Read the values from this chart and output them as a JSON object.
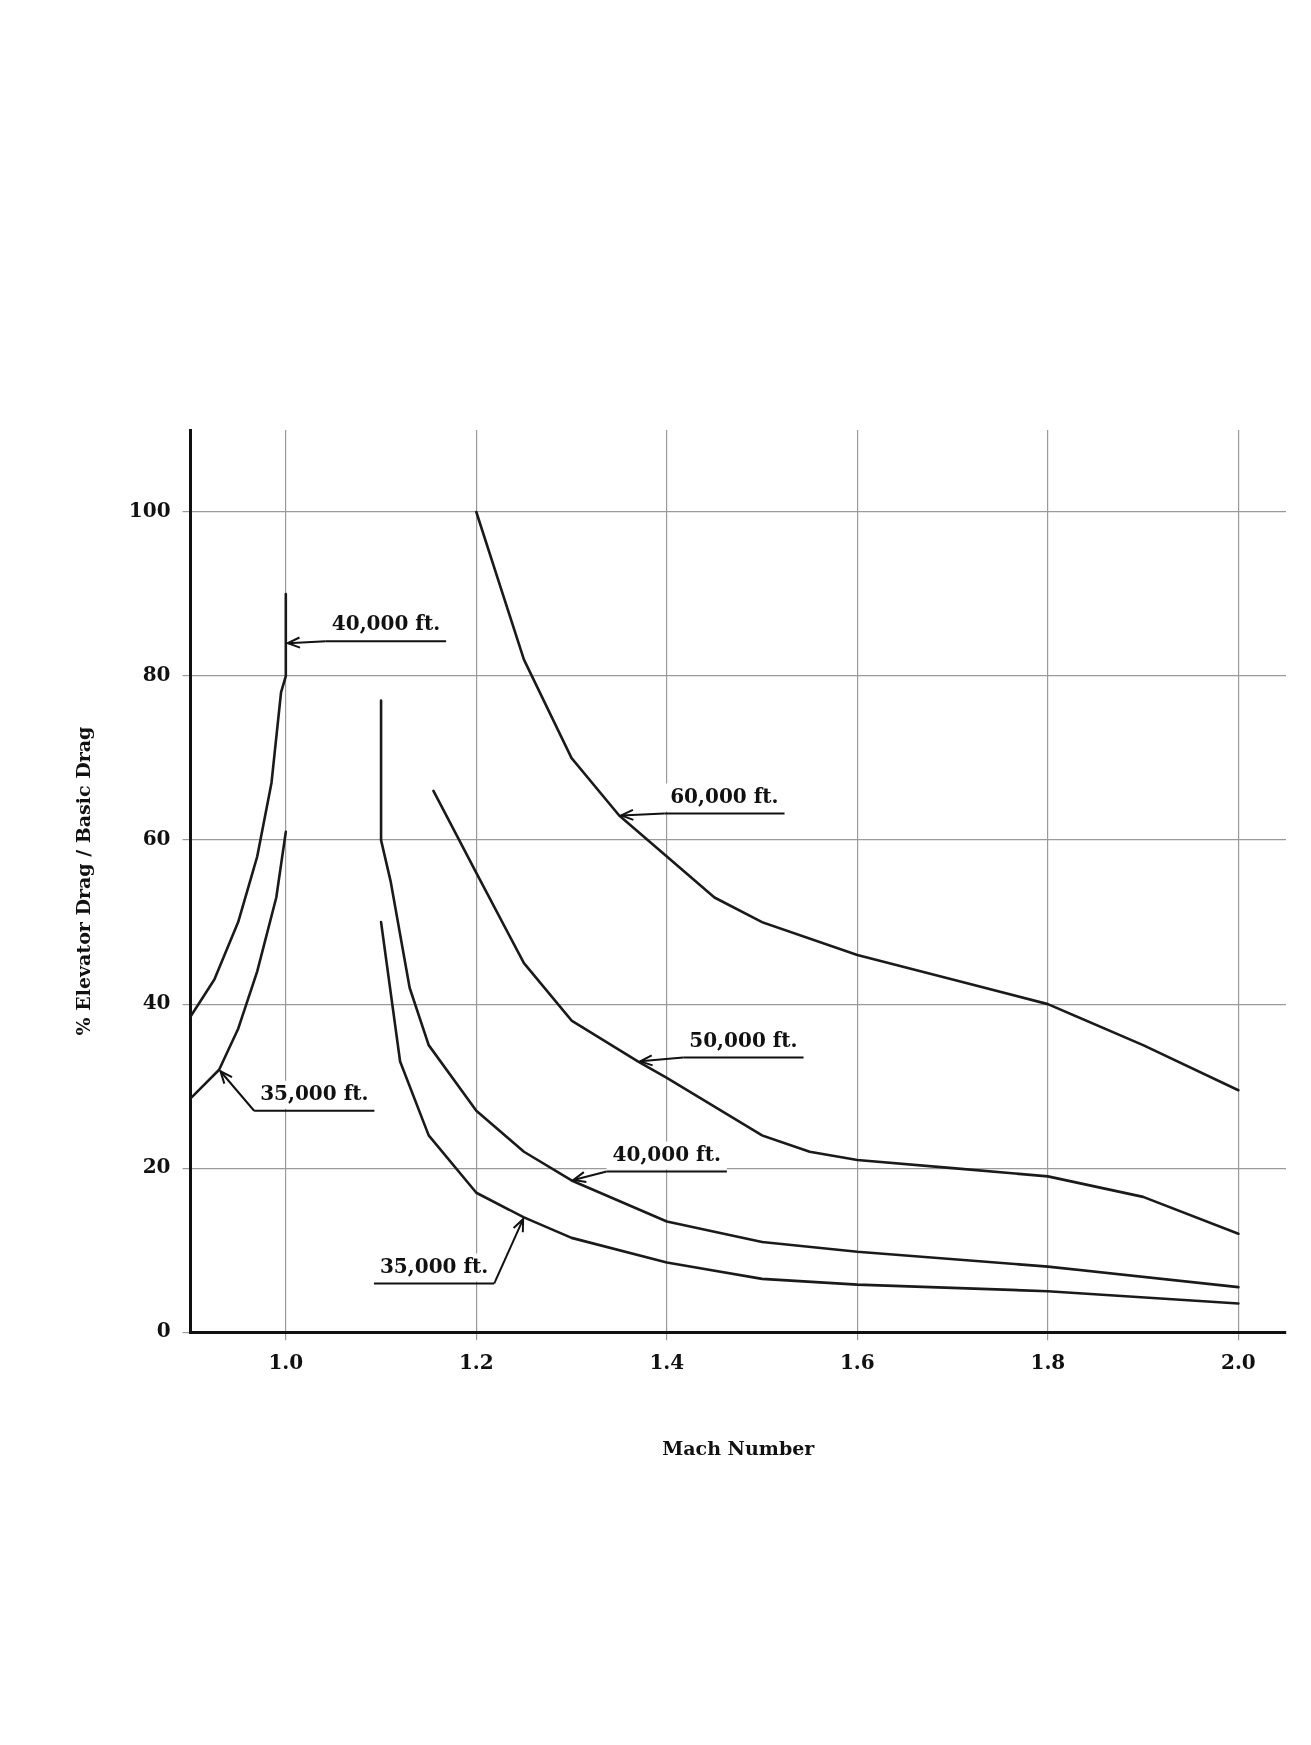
{
  "chart_data": {
    "type": "line",
    "xlabel": "Mach Number",
    "ylabel": "% Elevator Drag / Basic Drag",
    "xlim": [
      0.9,
      2.05
    ],
    "xticks": [
      {
        "value": 1,
        "label": "1.0"
      },
      1.2,
      1.4,
      1.6,
      1.8,
      {
        "value": 2,
        "label": "2.0"
      }
    ],
    "ylim": [
      0,
      110
    ],
    "yticks": [
      0,
      20,
      40,
      60,
      80,
      100
    ],
    "grid": true,
    "legend": false,
    "marker": "none",
    "line_style": "solid",
    "series": [
      {
        "color": "#1a1a1a",
        "x": [
          0.9,
          0.925,
          0.95,
          0.97,
          0.985,
          0.995,
          1.0,
          1.0
        ],
        "values": [
          38.5,
          43,
          50,
          58,
          67,
          78,
          80,
          90
        ]
      },
      {
        "color": "#1a1a1a",
        "x": [
          0.9,
          0.93,
          0.95,
          0.97,
          0.99,
          1.0
        ],
        "values": [
          28.5,
          32,
          37,
          44,
          53,
          61
        ]
      },
      {
        "color": "#1a1a1a",
        "x": [
          1.1,
          1.1,
          1.11,
          1.13,
          1.15,
          1.2,
          1.25,
          1.3,
          1.4,
          1.5,
          1.6,
          1.8,
          2.0
        ],
        "values": [
          77,
          60,
          55,
          42,
          35,
          27,
          22,
          18.5,
          13.5,
          11,
          9.8,
          8,
          5.5
        ]
      },
      {
        "color": "#1a1a1a",
        "x": [
          1.1,
          1.12,
          1.15,
          1.2,
          1.25,
          1.3,
          1.4,
          1.5,
          1.6,
          1.8,
          2.0
        ],
        "values": [
          50,
          33,
          24,
          17,
          14,
          11.5,
          8.5,
          6.5,
          5.8,
          5,
          3.5
        ]
      },
      {
        "color": "#1a1a1a",
        "x": [
          1.155,
          1.2,
          1.25,
          1.3,
          1.37,
          1.4,
          1.5,
          1.55,
          1.6,
          1.7,
          1.8,
          1.9,
          2.0
        ],
        "values": [
          66,
          56,
          45,
          38,
          33,
          31,
          24,
          22,
          21,
          20,
          19,
          16.5,
          12
        ]
      },
      {
        "color": "#1a1a1a",
        "x": [
          1.2,
          1.25,
          1.3,
          1.35,
          1.4,
          1.45,
          1.5,
          1.6,
          1.7,
          1.8,
          1.9,
          2.0
        ],
        "values": [
          100,
          82,
          70,
          63,
          58,
          53,
          50,
          46,
          43,
          40,
          35,
          29.5
        ]
      }
    ],
    "annotations": [
      {
        "text": "40,000 ft.",
        "x": 1.0,
        "y": 84
      },
      {
        "text": "35,000 ft.",
        "x": 0.93,
        "y": 32
      },
      {
        "text": "60,000 ft.",
        "x": 1.35,
        "y": 63
      },
      {
        "text": "50,000 ft.",
        "x": 1.37,
        "y": 33
      },
      {
        "text": "40,000 ft.",
        "x": 1.3,
        "y": 18.5
      },
      {
        "text": "35,000 ft.",
        "x": 1.25,
        "y": 14
      }
    ]
  }
}
